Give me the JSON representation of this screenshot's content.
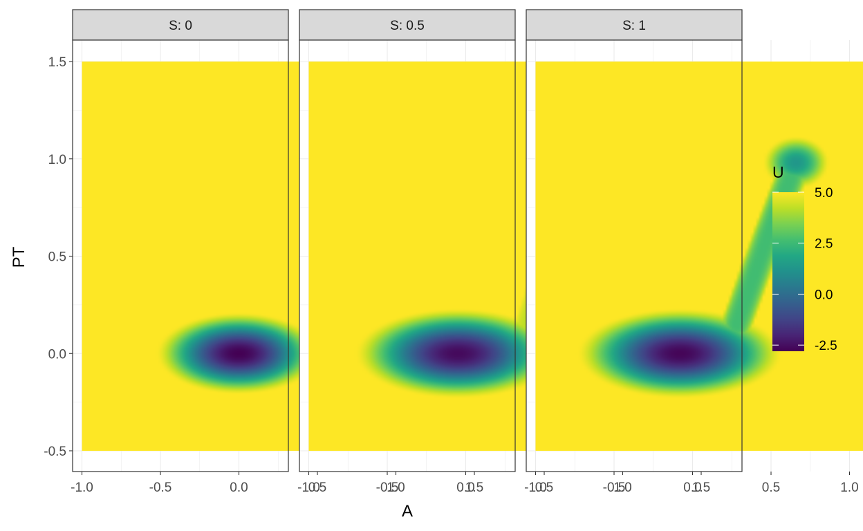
{
  "chart_data": {
    "type": "heatmap",
    "xlabel": "A",
    "ylabel": "PT",
    "facet_label_prefix": "S: ",
    "xlim": [
      -1.0,
      1.5
    ],
    "ylim": [
      -0.5,
      1.5
    ],
    "x_ticks": [
      -1.0,
      -0.5,
      0.0,
      0.5,
      1.0,
      1.5
    ],
    "x_tick_labels": [
      "-1.0",
      "-0.5",
      "0.0",
      "0.5",
      "1.0",
      "1.5"
    ],
    "y_ticks": [
      -0.5,
      0.0,
      0.5,
      1.0,
      1.5
    ],
    "y_tick_labels": [
      "-0.5",
      "0.0",
      "0.5",
      "1.0",
      "1.5"
    ],
    "grid": true,
    "legend": {
      "title": "U",
      "placement": "right",
      "range": [
        -2.8,
        5.0
      ],
      "ticks": [
        5.0,
        2.5,
        0.0,
        -2.5
      ],
      "tick_labels": [
        "5.0",
        "2.5",
        "0.0",
        "-2.5"
      ],
      "colormap": "viridis"
    },
    "clip_value": 5.0,
    "panels": [
      {
        "label": "S: 0",
        "s": 0,
        "min_value": -2.8,
        "features": [
          {
            "kind": "well",
            "center": [
              0.0,
              0.0
            ],
            "depth": 7.8,
            "width": [
              0.5,
              0.2
            ],
            "profile": "quartic"
          }
        ]
      },
      {
        "label": "S: 0.5",
        "s": 0.5,
        "min_value": -2.6,
        "features": [
          {
            "kind": "well",
            "center": [
              -0.05,
              0.0
            ],
            "depth": 7.6,
            "width": [
              0.62,
              0.22
            ],
            "profile": "quartic"
          },
          {
            "kind": "valley",
            "path": [
              [
                0.4,
                0.12
              ],
              [
                0.6,
                0.6
              ],
              [
                0.85,
                0.98
              ]
            ],
            "value": 4.2,
            "width": 0.1
          },
          {
            "kind": "well",
            "center": [
              0.85,
              0.98
            ],
            "depth": 1.4,
            "width": [
              0.15,
              0.1
            ],
            "profile": "quartic"
          }
        ]
      },
      {
        "label": "S: 1",
        "s": 1,
        "min_value": -2.7,
        "features": [
          {
            "kind": "well",
            "center": [
              -0.08,
              0.0
            ],
            "depth": 7.7,
            "width": [
              0.62,
              0.22
            ],
            "profile": "quartic"
          },
          {
            "kind": "valley",
            "path": [
              [
                0.28,
                0.15
              ],
              [
                0.48,
                0.6
              ],
              [
                0.66,
                0.98
              ]
            ],
            "value": 2.6,
            "width": 0.1
          },
          {
            "kind": "well",
            "center": [
              0.66,
              0.98
            ],
            "depth": 3.7,
            "width": [
              0.2,
              0.13
            ],
            "profile": "quartic"
          }
        ]
      }
    ]
  }
}
